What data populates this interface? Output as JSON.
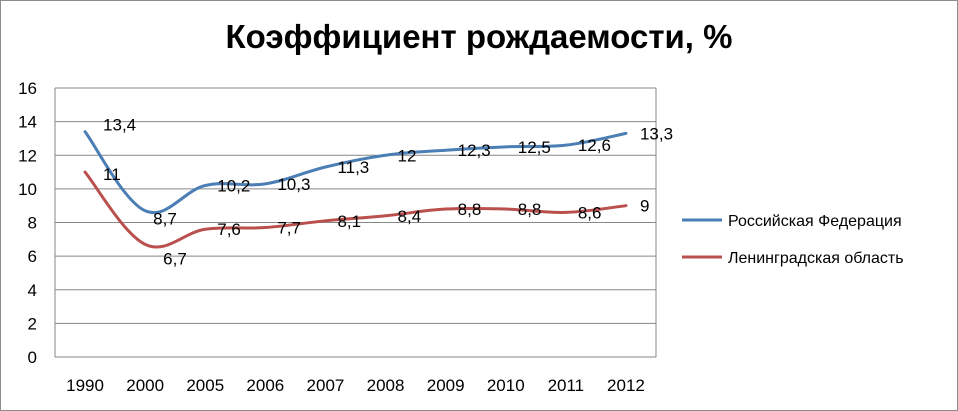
{
  "chart_data": {
    "type": "line",
    "title": "Коэффициент рождаемости, %",
    "xlabel": "",
    "ylabel": "",
    "categories": [
      "1990",
      "2000",
      "2005",
      "2006",
      "2007",
      "2008",
      "2009",
      "2010",
      "2011",
      "2012"
    ],
    "ylim": [
      0,
      16
    ],
    "yticks": [
      "0",
      "2",
      "4",
      "6",
      "8",
      "10",
      "12",
      "14",
      "16"
    ],
    "grid": true,
    "legend_position": "right",
    "series": [
      {
        "name": "Российская Федерация",
        "color": "#4a7eb5",
        "values": [
          13.4,
          8.7,
          10.2,
          10.3,
          11.3,
          12,
          12.3,
          12.5,
          12.6,
          13.3
        ],
        "labels": [
          "13,4",
          "8,7",
          "10,2",
          "10,3",
          "11,3",
          "12",
          "12,3",
          "12,5",
          "12,6",
          "13,3"
        ]
      },
      {
        "name": "Ленинградская область",
        "color": "#b9504d",
        "values": [
          11,
          6.7,
          7.6,
          7.7,
          8.1,
          8.4,
          8.8,
          8.8,
          8.6,
          9
        ],
        "labels": [
          "11",
          "6,7",
          "7,6",
          "7,7",
          "8,1",
          "8,4",
          "8,8",
          "8,8",
          "8,6",
          "9"
        ]
      }
    ]
  }
}
